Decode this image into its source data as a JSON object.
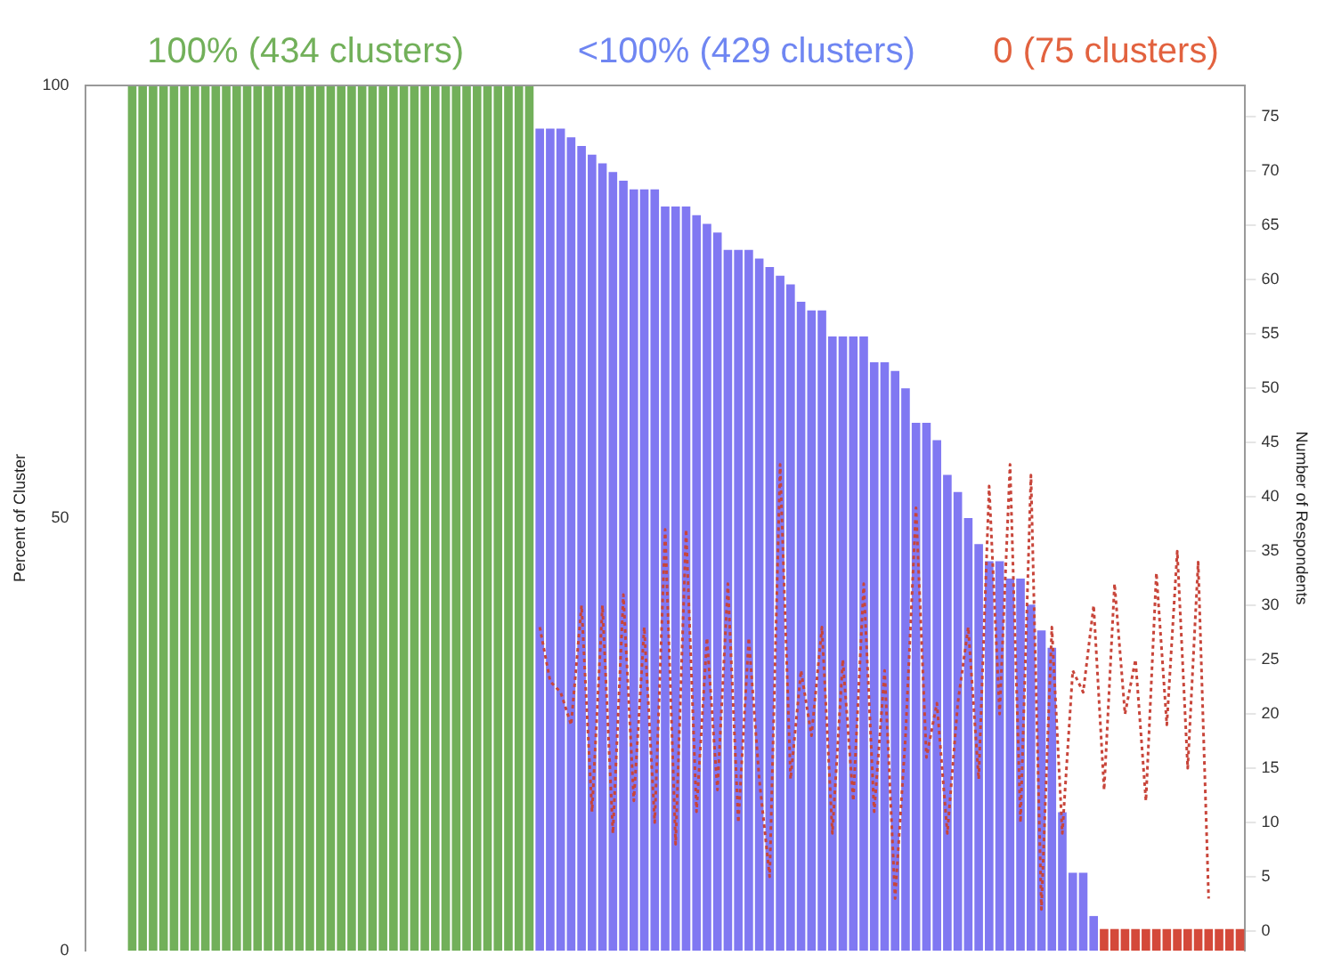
{
  "chart_data": {
    "type": "bar",
    "ylabel": "Percent of Cluster",
    "y2label": "Number of Respondents",
    "annotations": [
      "100% (434 clusters)",
      "<100% (429 clusters)",
      "0 (75 clusters)"
    ],
    "categories": [
      null,
      null,
      null,
      null,
      null,
      null,
      null,
      null,
      null,
      null,
      null,
      null,
      null,
      null,
      null,
      null,
      null,
      null,
      null,
      null,
      null,
      null,
      null,
      null,
      null,
      null,
      null,
      null,
      null,
      null,
      null,
      null,
      null,
      null,
      null,
      null,
      null,
      null,
      null,
      null,
      null,
      null,
      null,
      null,
      null,
      null,
      null,
      null,
      null,
      null,
      null,
      null,
      null,
      null,
      null,
      null,
      null,
      null,
      null,
      null,
      null,
      null,
      null,
      null,
      null,
      null,
      null,
      null,
      null,
      null,
      null,
      null,
      null,
      null,
      null,
      null,
      null,
      null,
      null,
      null,
      null,
      null,
      null,
      null,
      null,
      null,
      null,
      null,
      null,
      null,
      null,
      null,
      null,
      null,
      null,
      null,
      null,
      null,
      null,
      null,
      null,
      null,
      null,
      null,
      null,
      null,
      null,
      null,
      null,
      null,
      null
    ],
    "ylim": [
      0,
      100
    ],
    "yticks": [
      0,
      50,
      100
    ],
    "y2lim": [
      -1.8,
      77.9
    ],
    "y2ticks": [
      0,
      5,
      10,
      15,
      20,
      25,
      30,
      35,
      40,
      45,
      50,
      55,
      60,
      65,
      70,
      75
    ],
    "line_style": "dotted",
    "marker": "none",
    "series": [
      {
        "values": [
          null,
          null,
          null,
          null,
          100,
          100,
          100,
          100,
          100,
          100,
          100,
          100,
          100,
          100,
          100,
          100,
          100,
          100,
          100,
          100,
          100,
          100,
          100,
          100,
          100,
          100,
          100,
          100,
          100,
          100,
          100,
          100,
          100,
          100,
          100,
          100,
          100,
          100,
          100,
          100,
          100,
          100,
          100,
          95,
          95,
          95,
          94,
          93,
          92,
          91,
          90,
          89,
          88,
          88,
          88,
          86,
          86,
          86,
          85,
          84,
          83,
          81,
          81,
          81,
          80,
          79,
          78,
          77,
          75,
          74,
          74,
          71,
          71,
          71,
          71,
          68,
          68,
          67,
          65,
          61,
          61,
          59,
          55,
          53,
          50,
          47,
          45,
          45,
          43,
          43,
          40,
          37,
          35,
          16,
          9,
          9,
          4,
          2.5,
          2.5,
          2.5,
          2.5,
          2.5,
          2.5,
          2.5,
          2.5,
          2.5,
          2.5,
          2.5,
          2.5,
          2.5,
          2.5
        ],
        "colors": [
          null,
          null,
          null,
          null,
          "#72b05a",
          "#72b05a",
          "#72b05a",
          "#72b05a",
          "#72b05a",
          "#72b05a",
          "#72b05a",
          "#72b05a",
          "#72b05a",
          "#72b05a",
          "#72b05a",
          "#72b05a",
          "#72b05a",
          "#72b05a",
          "#72b05a",
          "#72b05a",
          "#72b05a",
          "#72b05a",
          "#72b05a",
          "#72b05a",
          "#72b05a",
          "#72b05a",
          "#72b05a",
          "#72b05a",
          "#72b05a",
          "#72b05a",
          "#72b05a",
          "#72b05a",
          "#72b05a",
          "#72b05a",
          "#72b05a",
          "#72b05a",
          "#72b05a",
          "#72b05a",
          "#72b05a",
          "#72b05a",
          "#72b05a",
          "#72b05a",
          "#72b05a",
          "#8078f2",
          "#8078f2",
          "#8078f2",
          "#8078f2",
          "#8078f2",
          "#8078f2",
          "#8078f2",
          "#8078f2",
          "#8078f2",
          "#8078f2",
          "#8078f2",
          "#8078f2",
          "#8078f2",
          "#8078f2",
          "#8078f2",
          "#8078f2",
          "#8078f2",
          "#8078f2",
          "#8078f2",
          "#8078f2",
          "#8078f2",
          "#8078f2",
          "#8078f2",
          "#8078f2",
          "#8078f2",
          "#8078f2",
          "#8078f2",
          "#8078f2",
          "#8078f2",
          "#8078f2",
          "#8078f2",
          "#8078f2",
          "#8078f2",
          "#8078f2",
          "#8078f2",
          "#8078f2",
          "#8078f2",
          "#8078f2",
          "#8078f2",
          "#8078f2",
          "#8078f2",
          "#8078f2",
          "#8078f2",
          "#8078f2",
          "#8078f2",
          "#8078f2",
          "#8078f2",
          "#8078f2",
          "#8078f2",
          "#8078f2",
          "#8078f2",
          "#8078f2",
          "#8078f2",
          "#8078f2",
          "#d4493a",
          "#d4493a",
          "#d4493a",
          "#d4493a",
          "#d4493a",
          "#d4493a",
          "#d4493a",
          "#d4493a",
          "#d4493a",
          "#d4493a",
          "#d4493a",
          "#d4493a",
          "#d4493a",
          "#d4493a"
        ]
      },
      {
        "type": "line",
        "axis": "y2",
        "color": "#c8453a",
        "values": [
          null,
          null,
          null,
          null,
          null,
          null,
          null,
          null,
          null,
          null,
          null,
          null,
          null,
          null,
          null,
          null,
          null,
          null,
          null,
          null,
          null,
          null,
          null,
          null,
          null,
          null,
          null,
          null,
          null,
          null,
          null,
          null,
          null,
          null,
          null,
          null,
          null,
          null,
          null,
          null,
          null,
          null,
          null,
          28,
          23,
          22,
          19,
          30,
          11,
          30,
          9,
          31,
          12,
          28,
          10,
          37,
          8,
          37,
          11,
          27,
          13,
          32,
          10,
          27,
          14,
          5,
          43,
          14,
          24,
          18,
          28,
          9,
          25,
          12,
          32,
          11,
          24,
          3,
          18,
          39,
          16,
          21,
          9,
          21,
          28,
          14,
          41,
          20,
          43,
          10,
          42,
          2,
          28,
          9,
          24,
          22,
          30,
          13,
          32,
          20,
          25,
          12,
          33,
          19,
          35,
          15,
          34,
          3,
          null,
          null,
          null
        ]
      }
    ]
  }
}
